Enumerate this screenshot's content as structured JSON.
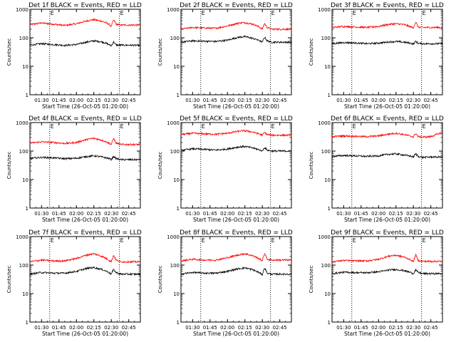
{
  "figure": {
    "xlabel": "Start Time (26-Oct-05 01:20:00)",
    "ylabel": "Counts/sec",
    "marker_label": "E",
    "colors": {
      "events": "#000000",
      "lld": "#ff0000",
      "axes": "#000000"
    }
  },
  "chart_data": [
    {
      "type": "line",
      "title": "Det 1f BLACK = Events, RED = LLD",
      "xlabel": "Start Time (26-Oct-05 01:20:00)",
      "ylabel": "Counts/sec",
      "x_ticks": [
        "01:30",
        "01:45",
        "02:00",
        "02:15",
        "02:30",
        "02:45"
      ],
      "y_ticks": [
        "1",
        "10",
        "100",
        "1000"
      ],
      "yscale": "log",
      "ylim": [
        1,
        1000
      ],
      "xlim_minutes_from_start": [
        0,
        95
      ],
      "event_marker_minutes": [
        17,
        77
      ],
      "series": [
        {
          "color": "red",
          "x": [
            0,
            10,
            20,
            30,
            40,
            50,
            55,
            62,
            68,
            70,
            72,
            74,
            78,
            85,
            95
          ],
          "y": [
            290,
            330,
            300,
            270,
            310,
            400,
            430,
            380,
            300,
            250,
            420,
            300,
            280,
            280,
            280
          ]
        },
        {
          "color": "black",
          "x": [
            0,
            10,
            20,
            30,
            40,
            50,
            55,
            62,
            68,
            70,
            72,
            74,
            78,
            85,
            95
          ],
          "y": [
            55,
            62,
            58,
            54,
            58,
            72,
            78,
            72,
            58,
            52,
            72,
            56,
            55,
            55,
            54
          ]
        }
      ]
    },
    {
      "type": "line",
      "title": "Det 2f BLACK = Events, RED = LLD",
      "xlabel": "Start Time (26-Oct-05 01:20:00)",
      "ylabel": "Counts/sec",
      "x_ticks": [
        "01:30",
        "01:45",
        "02:00",
        "02:15",
        "02:30",
        "02:45"
      ],
      "y_ticks": [
        "1",
        "10",
        "100",
        "1000"
      ],
      "yscale": "log",
      "ylim": [
        1,
        1000
      ],
      "xlim_minutes_from_start": [
        0,
        95
      ],
      "event_marker_minutes": [
        17,
        77
      ],
      "series": [
        {
          "color": "red",
          "x": [
            0,
            10,
            20,
            30,
            40,
            50,
            55,
            62,
            68,
            70,
            72,
            74,
            78,
            85,
            95
          ],
          "y": [
            200,
            230,
            220,
            215,
            260,
            330,
            340,
            300,
            230,
            200,
            320,
            230,
            200,
            200,
            200
          ]
        },
        {
          "color": "black",
          "x": [
            0,
            10,
            20,
            30,
            40,
            50,
            55,
            62,
            68,
            70,
            72,
            74,
            78,
            85,
            95
          ],
          "y": [
            70,
            78,
            76,
            74,
            82,
            105,
            110,
            95,
            78,
            70,
            105,
            78,
            70,
            70,
            70
          ]
        }
      ]
    },
    {
      "type": "line",
      "title": "Det 3f BLACK = Events, RED = LLD",
      "xlabel": "Start Time (26-Oct-05 01:20:00)",
      "ylabel": "Counts/sec",
      "x_ticks": [
        "01:30",
        "01:45",
        "02:00",
        "02:15",
        "02:30",
        "02:45"
      ],
      "y_ticks": [
        "1",
        "10",
        "100",
        "1000"
      ],
      "yscale": "log",
      "ylim": [
        1,
        1000
      ],
      "xlim_minutes_from_start": [
        0,
        95
      ],
      "event_marker_minutes": [
        17,
        77
      ],
      "series": [
        {
          "color": "red",
          "x": [
            0,
            10,
            20,
            30,
            40,
            50,
            55,
            62,
            68,
            70,
            72,
            74,
            78,
            85,
            95
          ],
          "y": [
            230,
            250,
            240,
            230,
            250,
            300,
            310,
            290,
            240,
            220,
            350,
            240,
            230,
            230,
            230
          ]
        },
        {
          "color": "black",
          "x": [
            0,
            10,
            20,
            30,
            40,
            50,
            55,
            62,
            68,
            70,
            72,
            74,
            78,
            85,
            95
          ],
          "y": [
            62,
            68,
            66,
            62,
            65,
            72,
            74,
            70,
            64,
            60,
            75,
            64,
            62,
            62,
            62
          ]
        }
      ]
    },
    {
      "type": "line",
      "title": "Det 4f BLACK = Events, RED = LLD",
      "xlabel": "Start Time (26-Oct-05 01:20:00)",
      "ylabel": "Counts/sec",
      "x_ticks": [
        "01:30",
        "01:45",
        "02:00",
        "02:15",
        "02:30",
        "02:45"
      ],
      "y_ticks": [
        "1",
        "10",
        "100",
        "1000"
      ],
      "yscale": "log",
      "ylim": [
        1,
        1000
      ],
      "xlim_minutes_from_start": [
        0,
        95
      ],
      "event_marker_minutes": [
        17,
        77
      ],
      "series": [
        {
          "color": "red",
          "x": [
            0,
            10,
            20,
            30,
            40,
            50,
            55,
            62,
            68,
            70,
            72,
            74,
            78,
            85,
            95
          ],
          "y": [
            190,
            210,
            200,
            185,
            200,
            260,
            280,
            240,
            190,
            170,
            280,
            190,
            170,
            170,
            170
          ]
        },
        {
          "color": "black",
          "x": [
            0,
            10,
            20,
            30,
            40,
            50,
            55,
            62,
            68,
            70,
            72,
            74,
            78,
            85,
            95
          ],
          "y": [
            55,
            60,
            58,
            54,
            56,
            65,
            68,
            62,
            55,
            50,
            65,
            55,
            50,
            50,
            50
          ]
        }
      ]
    },
    {
      "type": "line",
      "title": "Det 5f BLACK = Events, RED = LLD",
      "xlabel": "Start Time (26-Oct-05 01:20:00)",
      "ylabel": "Counts/sec",
      "x_ticks": [
        "01:30",
        "01:45",
        "02:00",
        "02:15",
        "02:30",
        "02:45"
      ],
      "y_ticks": [
        "1",
        "10",
        "100",
        "1000"
      ],
      "yscale": "log",
      "ylim": [
        1,
        1000
      ],
      "xlim_minutes_from_start": [
        0,
        95
      ],
      "event_marker_minutes": [
        17,
        77
      ],
      "series": [
        {
          "color": "red",
          "x": [
            0,
            10,
            20,
            30,
            40,
            50,
            55,
            62,
            68,
            70,
            72,
            74,
            78,
            85,
            95
          ],
          "y": [
            380,
            420,
            400,
            390,
            420,
            500,
            520,
            460,
            390,
            360,
            450,
            380,
            360,
            360,
            360
          ]
        },
        {
          "color": "black",
          "x": [
            0,
            10,
            20,
            30,
            40,
            50,
            55,
            62,
            68,
            70,
            72,
            74,
            78,
            85,
            95
          ],
          "y": [
            105,
            120,
            115,
            108,
            118,
            140,
            145,
            128,
            108,
            100,
            135,
            108,
            100,
            100,
            100
          ]
        }
      ]
    },
    {
      "type": "line",
      "title": "Det 6f BLACK = Events, RED = LLD",
      "xlabel": "Start Time (26-Oct-05 01:20:00)",
      "ylabel": "Counts/sec",
      "x_ticks": [
        "01:30",
        "01:45",
        "02:00",
        "02:15",
        "02:30",
        "02:45"
      ],
      "y_ticks": [
        "1",
        "10",
        "100",
        "1000"
      ],
      "yscale": "log",
      "ylim": [
        1,
        1000
      ],
      "xlim_minutes_from_start": [
        0,
        95
      ],
      "event_marker_minutes": [
        17,
        77
      ],
      "series": [
        {
          "color": "red",
          "x": [
            0,
            10,
            20,
            30,
            40,
            50,
            55,
            62,
            68,
            70,
            72,
            74,
            78,
            85,
            95
          ],
          "y": [
            320,
            340,
            330,
            320,
            340,
            400,
            420,
            380,
            330,
            310,
            420,
            320,
            310,
            320,
            450
          ]
        },
        {
          "color": "black",
          "x": [
            0,
            10,
            20,
            30,
            40,
            50,
            55,
            62,
            68,
            70,
            72,
            74,
            78,
            85,
            95
          ],
          "y": [
            65,
            70,
            68,
            65,
            68,
            78,
            80,
            72,
            66,
            62,
            80,
            65,
            60,
            62,
            62
          ]
        }
      ]
    },
    {
      "type": "line",
      "title": "Det 7f BLACK = Events, RED = LLD",
      "xlabel": "Start Time (26-Oct-05 01:20:00)",
      "ylabel": "Counts/sec",
      "x_ticks": [
        "01:30",
        "01:45",
        "02:00",
        "02:15",
        "02:30",
        "02:45"
      ],
      "y_ticks": [
        "1",
        "10",
        "100",
        "1000"
      ],
      "yscale": "log",
      "ylim": [
        1,
        1000
      ],
      "xlim_minutes_from_start": [
        0,
        95
      ],
      "event_marker_minutes": [
        17,
        77
      ],
      "series": [
        {
          "color": "red",
          "x": [
            0,
            10,
            20,
            30,
            40,
            50,
            55,
            62,
            68,
            70,
            72,
            74,
            78,
            85,
            95
          ],
          "y": [
            130,
            150,
            140,
            140,
            170,
            230,
            250,
            200,
            150,
            130,
            220,
            150,
            130,
            130,
            130
          ]
        },
        {
          "color": "black",
          "x": [
            0,
            10,
            20,
            30,
            40,
            50,
            55,
            62,
            68,
            70,
            72,
            74,
            78,
            85,
            95
          ],
          "y": [
            48,
            55,
            52,
            52,
            60,
            78,
            82,
            70,
            55,
            48,
            70,
            55,
            48,
            48,
            48
          ]
        }
      ]
    },
    {
      "type": "line",
      "title": "Det 8f BLACK = Events, RED = LLD",
      "xlabel": "Start Time (26-Oct-05 01:20:00)",
      "ylabel": "Counts/sec",
      "x_ticks": [
        "01:30",
        "01:45",
        "02:00",
        "02:15",
        "02:30",
        "02:45"
      ],
      "y_ticks": [
        "1",
        "10",
        "100",
        "1000"
      ],
      "yscale": "log",
      "ylim": [
        1,
        1000
      ],
      "xlim_minutes_from_start": [
        0,
        95
      ],
      "event_marker_minutes": [
        17,
        77
      ],
      "series": [
        {
          "color": "red",
          "x": [
            0,
            10,
            20,
            30,
            40,
            50,
            55,
            62,
            68,
            70,
            72,
            74,
            78,
            85,
            95
          ],
          "y": [
            140,
            160,
            150,
            150,
            180,
            230,
            250,
            210,
            160,
            140,
            260,
            160,
            150,
            150,
            150
          ]
        },
        {
          "color": "black",
          "x": [
            0,
            10,
            20,
            30,
            40,
            50,
            55,
            62,
            68,
            70,
            72,
            74,
            78,
            85,
            95
          ],
          "y": [
            48,
            55,
            52,
            52,
            60,
            75,
            80,
            68,
            52,
            46,
            80,
            52,
            48,
            48,
            48
          ]
        }
      ]
    },
    {
      "type": "line",
      "title": "Det 9f BLACK = Events, RED = LLD",
      "xlabel": "Start Time (26-Oct-05 01:20:00)",
      "ylabel": "Counts/sec",
      "x_ticks": [
        "01:30",
        "01:45",
        "02:00",
        "02:15",
        "02:30",
        "02:45"
      ],
      "y_ticks": [
        "1",
        "10",
        "100",
        "1000"
      ],
      "yscale": "log",
      "ylim": [
        1,
        1000
      ],
      "xlim_minutes_from_start": [
        0,
        95
      ],
      "event_marker_minutes": [
        17,
        77
      ],
      "series": [
        {
          "color": "red",
          "x": [
            0,
            10,
            20,
            30,
            40,
            50,
            55,
            62,
            68,
            70,
            72,
            74,
            78,
            85,
            95
          ],
          "y": [
            130,
            145,
            140,
            140,
            160,
            210,
            220,
            190,
            150,
            130,
            230,
            145,
            135,
            135,
            135
          ]
        },
        {
          "color": "black",
          "x": [
            0,
            10,
            20,
            30,
            40,
            50,
            55,
            62,
            68,
            70,
            72,
            74,
            78,
            85,
            95
          ],
          "y": [
            50,
            56,
            54,
            54,
            58,
            68,
            70,
            64,
            54,
            50,
            68,
            55,
            50,
            50,
            50
          ]
        }
      ]
    }
  ]
}
